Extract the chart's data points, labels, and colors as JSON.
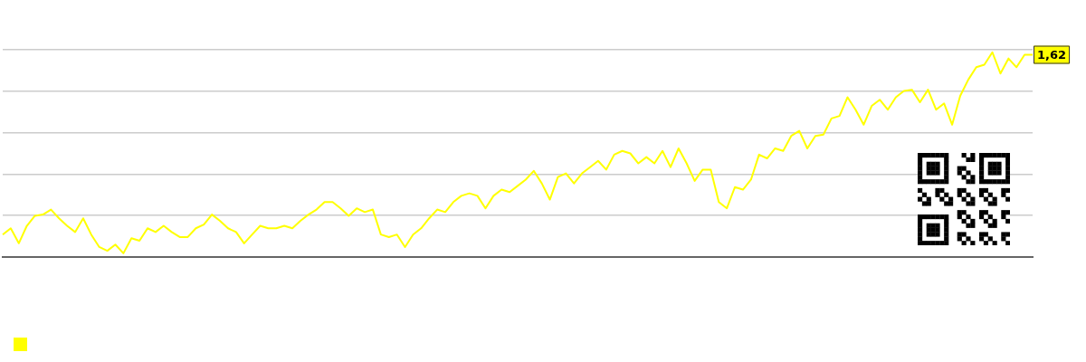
{
  "chart_data": {
    "type": "line",
    "grid": "y",
    "marker": "none",
    "ylim": [
      0,
      1.66
    ],
    "yticks": [
      {
        "value": 0,
        "label": null
      },
      {
        "value": 0.332,
        "label": null
      },
      {
        "value": 0.664,
        "label": null
      },
      {
        "value": 0.996,
        "label": null
      },
      {
        "value": 1.328,
        "label": null
      },
      {
        "value": 1.66,
        "label": null
      }
    ],
    "categories": [
      null,
      null,
      null,
      null,
      null,
      null,
      null,
      null,
      null,
      null,
      null,
      null,
      null,
      null,
      null,
      null,
      null,
      null,
      null,
      null,
      null,
      null,
      null,
      null,
      null,
      null,
      null,
      null,
      null,
      null,
      null,
      null,
      null,
      null,
      null,
      null,
      null,
      null,
      null,
      null,
      null,
      null,
      null,
      null,
      null,
      null,
      null,
      null,
      null,
      null,
      null,
      null,
      null,
      null,
      null,
      null,
      null,
      null,
      null,
      null,
      null,
      null,
      null,
      null,
      null,
      null,
      null,
      null,
      null,
      null,
      null,
      null,
      null,
      null,
      null,
      null,
      null,
      null,
      null,
      null,
      null,
      null,
      null,
      null,
      null,
      null,
      null,
      null,
      null,
      null,
      null,
      null,
      null,
      null,
      null,
      null,
      null,
      null,
      null,
      null,
      null,
      null,
      null,
      null,
      null,
      null,
      null,
      null,
      null,
      null,
      null,
      null,
      null,
      null,
      null,
      null,
      null,
      null,
      null,
      null,
      null,
      null,
      null,
      null,
      null,
      null,
      null,
      null,
      null
    ],
    "series": [
      {
        "color": "#ffff00",
        "values": [
          0.18,
          0.23,
          0.11,
          0.25,
          0.33,
          0.34,
          0.38,
          0.31,
          0.25,
          0.2,
          0.31,
          0.18,
          0.08,
          0.05,
          0.1,
          0.03,
          0.15,
          0.13,
          0.23,
          0.2,
          0.25,
          0.2,
          0.16,
          0.16,
          0.23,
          0.26,
          0.34,
          0.29,
          0.23,
          0.2,
          0.11,
          0.18,
          0.25,
          0.23,
          0.23,
          0.25,
          0.23,
          0.29,
          0.34,
          0.38,
          0.44,
          0.44,
          0.39,
          0.33,
          0.39,
          0.36,
          0.38,
          0.18,
          0.16,
          0.18,
          0.08,
          0.18,
          0.23,
          0.31,
          0.38,
          0.36,
          0.44,
          0.49,
          0.51,
          0.49,
          0.39,
          0.49,
          0.54,
          0.52,
          0.57,
          0.62,
          0.69,
          0.59,
          0.46,
          0.64,
          0.67,
          0.59,
          0.67,
          0.72,
          0.77,
          0.7,
          0.82,
          0.85,
          0.83,
          0.75,
          0.8,
          0.75,
          0.85,
          0.72,
          0.87,
          0.75,
          0.61,
          0.7,
          0.7,
          0.44,
          0.39,
          0.56,
          0.54,
          0.62,
          0.82,
          0.79,
          0.87,
          0.85,
          0.97,
          1.01,
          0.87,
          0.97,
          0.98,
          1.11,
          1.13,
          1.28,
          1.18,
          1.06,
          1.21,
          1.26,
          1.18,
          1.28,
          1.33,
          1.34,
          1.24,
          1.34,
          1.18,
          1.23,
          1.06,
          1.29,
          1.42,
          1.52,
          1.54,
          1.64,
          1.47,
          1.59,
          1.52,
          1.62,
          1.62
        ],
        "value_labels": [
          null,
          null,
          null,
          null,
          null,
          null,
          null,
          null,
          null,
          null,
          null,
          null,
          null,
          null,
          null,
          null,
          null,
          null,
          null,
          null,
          null,
          null,
          null,
          null,
          null,
          null,
          null,
          null,
          null,
          null,
          null,
          null,
          null,
          null,
          null,
          null,
          null,
          null,
          null,
          null,
          null,
          null,
          null,
          null,
          null,
          null,
          null,
          null,
          null,
          null,
          null,
          null,
          null,
          null,
          null,
          null,
          null,
          null,
          null,
          null,
          null,
          null,
          null,
          null,
          null,
          null,
          null,
          null,
          null,
          null,
          null,
          null,
          null,
          null,
          null,
          null,
          null,
          null,
          null,
          null,
          null,
          null,
          null,
          null,
          null,
          null,
          null,
          null,
          null,
          null,
          null,
          null,
          null,
          null,
          null,
          null,
          null,
          null,
          null,
          null,
          null,
          null,
          null,
          null,
          null,
          null,
          null,
          null,
          null,
          null,
          null,
          null,
          null,
          null,
          null,
          null,
          null,
          null,
          null,
          null,
          null,
          null,
          null,
          null,
          null,
          null,
          null,
          null,
          "1,62"
        ]
      }
    ]
  }
}
